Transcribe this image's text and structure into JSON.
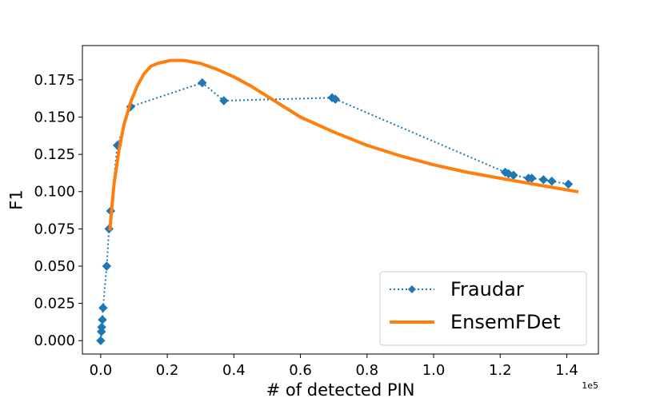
{
  "chart_data": {
    "type": "line",
    "title": "",
    "xlabel": "# of detected PIN",
    "ylabel": "F1",
    "x_offset_text": "1e5",
    "xlim": [
      -0.055,
      1.495
    ],
    "ylim": [
      -0.009,
      0.198
    ],
    "x_ticks": [
      0.0,
      0.2,
      0.4,
      0.6,
      0.8,
      1.0,
      1.2,
      1.4
    ],
    "x_tick_labels": [
      "0.0",
      "0.2",
      "0.4",
      "0.6",
      "0.8",
      "1.0",
      "1.2",
      "1.4"
    ],
    "y_ticks": [
      0.0,
      0.025,
      0.05,
      0.075,
      0.1,
      0.125,
      0.15,
      0.175
    ],
    "y_tick_labels": [
      "0.000",
      "0.025",
      "0.050",
      "0.075",
      "0.100",
      "0.125",
      "0.150",
      "0.175"
    ],
    "grid": false,
    "legend_position": "lower-right",
    "colors": {
      "Fraudar": "#1f77b4",
      "EnsemFDet": "#ff7f0e"
    },
    "series": [
      {
        "name": "Fraudar",
        "style": "dotted-diamond",
        "x": [
          0.0,
          0.002,
          0.003,
          0.005,
          0.007,
          0.018,
          0.025,
          0.03,
          0.05,
          0.09,
          0.305,
          0.37,
          0.695,
          0.705,
          1.215,
          1.225,
          1.24,
          1.285,
          1.295,
          1.33,
          1.355,
          1.405
        ],
        "y": [
          0.0,
          0.006,
          0.009,
          0.014,
          0.022,
          0.05,
          0.075,
          0.087,
          0.131,
          0.157,
          0.173,
          0.161,
          0.163,
          0.162,
          0.113,
          0.112,
          0.111,
          0.109,
          0.109,
          0.108,
          0.107,
          0.105
        ]
      },
      {
        "name": "EnsemFDet",
        "style": "solid",
        "x": [
          0.028,
          0.04,
          0.055,
          0.07,
          0.09,
          0.11,
          0.13,
          0.15,
          0.17,
          0.19,
          0.21,
          0.25,
          0.3,
          0.35,
          0.4,
          0.45,
          0.5,
          0.55,
          0.6,
          0.7,
          0.8,
          0.9,
          1.0,
          1.1,
          1.2,
          1.3,
          1.43
        ],
        "y": [
          0.075,
          0.105,
          0.128,
          0.145,
          0.16,
          0.171,
          0.179,
          0.184,
          0.186,
          0.187,
          0.188,
          0.188,
          0.186,
          0.182,
          0.177,
          0.171,
          0.164,
          0.157,
          0.15,
          0.14,
          0.131,
          0.124,
          0.118,
          0.113,
          0.109,
          0.105,
          0.1
        ]
      }
    ]
  }
}
